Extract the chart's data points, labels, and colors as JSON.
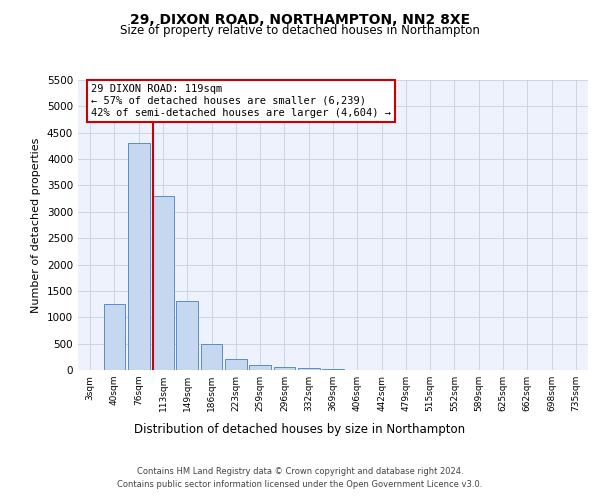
{
  "title1": "29, DIXON ROAD, NORTHAMPTON, NN2 8XE",
  "title2": "Size of property relative to detached houses in Northampton",
  "xlabel": "Distribution of detached houses by size in Northampton",
  "ylabel": "Number of detached properties",
  "categories": [
    "3sqm",
    "40sqm",
    "76sqm",
    "113sqm",
    "149sqm",
    "186sqm",
    "223sqm",
    "259sqm",
    "296sqm",
    "332sqm",
    "369sqm",
    "406sqm",
    "442sqm",
    "479sqm",
    "515sqm",
    "552sqm",
    "589sqm",
    "625sqm",
    "662sqm",
    "698sqm",
    "735sqm"
  ],
  "values": [
    0,
    1250,
    4300,
    3300,
    1300,
    500,
    200,
    100,
    50,
    30,
    15,
    5,
    0,
    0,
    0,
    0,
    0,
    0,
    0,
    0,
    0
  ],
  "bar_color": "#c5d8f0",
  "bar_edge_color": "#5b8dc8",
  "vline_color": "#cc0000",
  "vline_pos": 2.58,
  "annotation_text": "29 DIXON ROAD: 119sqm\n← 57% of detached houses are smaller (6,239)\n42% of semi-detached houses are larger (4,604) →",
  "ann_box_facecolor": "#ffffff",
  "ann_box_edgecolor": "#cc0000",
  "ylim_max": 5500,
  "yticks": [
    0,
    500,
    1000,
    1500,
    2000,
    2500,
    3000,
    3500,
    4000,
    4500,
    5000,
    5500
  ],
  "footer_line1": "Contains HM Land Registry data © Crown copyright and database right 2024.",
  "footer_line2": "Contains public sector information licensed under the Open Government Licence v3.0.",
  "bg_color": "#edf2fc",
  "grid_color": "#c5d0e0"
}
